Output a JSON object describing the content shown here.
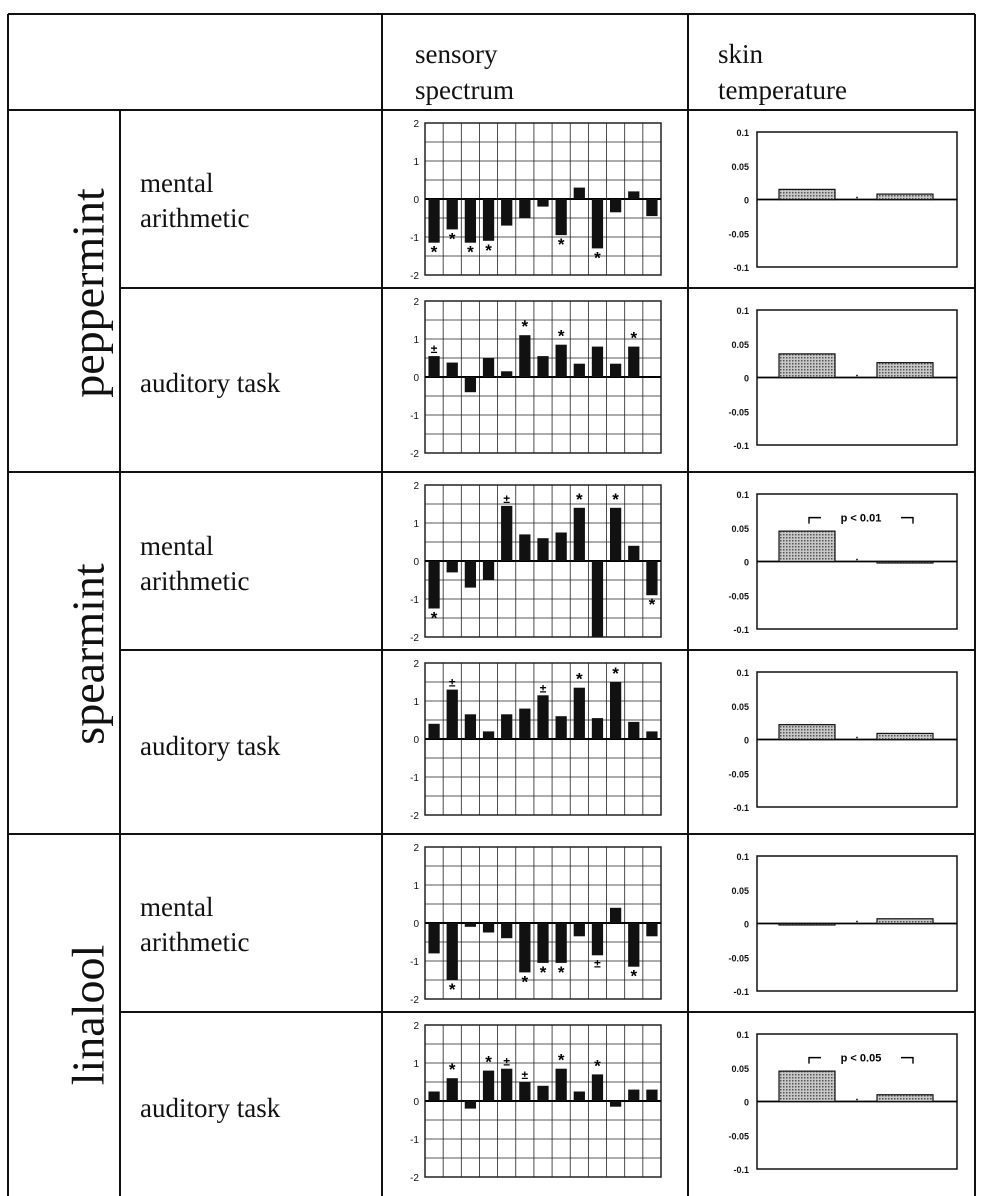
{
  "headers": {
    "sensory": "sensory\nspectrum",
    "skin": "skin\ntemperature"
  },
  "groups": [
    {
      "name": "peppermint",
      "rows": [
        {
          "task": "mental\narithmetic",
          "spectrum": [
            -1.15,
            -0.8,
            -1.15,
            -1.1,
            -0.7,
            -0.5,
            -0.2,
            -0.95,
            0.3,
            -1.3,
            -0.35,
            0.2,
            -0.45
          ],
          "marks": [
            "*",
            "*",
            "*",
            "*",
            "",
            "",
            "",
            "*",
            "",
            "*",
            "",
            "",
            ""
          ],
          "skin": {
            "bars": [
              0.015,
              0.008
            ],
            "annotation": ""
          }
        },
        {
          "task": "auditory task",
          "spectrum": [
            0.55,
            0.38,
            -0.4,
            0.5,
            0.15,
            1.1,
            0.55,
            0.85,
            0.35,
            0.8,
            0.35,
            0.8
          ],
          "marks": [
            "±",
            "",
            "",
            "",
            "",
            "*",
            "",
            "*",
            "",
            "",
            "",
            "*"
          ],
          "skin": {
            "bars": [
              0.035,
              0.022
            ],
            "annotation": ""
          }
        }
      ]
    },
    {
      "name": "spearmint",
      "rows": [
        {
          "task": "mental\narithmetic",
          "spectrum": [
            -1.25,
            -0.3,
            -0.7,
            -0.5,
            1.45,
            0.7,
            0.6,
            0.75,
            1.4,
            -2.0,
            1.4,
            0.4,
            -0.9
          ],
          "marks": [
            "*",
            "",
            "",
            "",
            "±",
            "",
            "",
            "",
            "*",
            "",
            "*",
            "",
            "*"
          ],
          "skin": {
            "bars": [
              0.045,
              0.0
            ],
            "annotation": "p < 0.01"
          }
        },
        {
          "task": "auditory task",
          "spectrum": [
            0.4,
            1.3,
            0.65,
            0.2,
            0.65,
            0.8,
            1.15,
            0.6,
            1.35,
            0.55,
            1.5,
            0.45,
            0.2
          ],
          "marks": [
            "",
            "±",
            "",
            "",
            "",
            "",
            "±",
            "",
            "*",
            "",
            "*",
            "",
            ""
          ],
          "skin": {
            "bars": [
              0.022,
              0.009
            ],
            "annotation": ""
          }
        }
      ]
    },
    {
      "name": "linalool",
      "rows": [
        {
          "task": "mental\narithmetic",
          "spectrum": [
            -0.8,
            -1.5,
            -0.1,
            -0.25,
            -0.4,
            -1.3,
            -1.05,
            -1.05,
            -0.35,
            -0.85,
            0.4,
            -1.15,
            -0.35
          ],
          "marks": [
            "",
            "*",
            "",
            "",
            "",
            "*",
            "*",
            "*",
            "",
            "±",
            "",
            "*",
            ""
          ],
          "skin": {
            "bars": [
              -0.002,
              0.007
            ],
            "annotation": ""
          }
        },
        {
          "task": "auditory task",
          "spectrum": [
            0.25,
            0.6,
            -0.2,
            0.8,
            0.85,
            0.5,
            0.4,
            0.85,
            0.25,
            0.7,
            -0.15,
            0.3,
            0.3
          ],
          "marks": [
            "",
            "*",
            "",
            "*",
            "±",
            "±",
            "",
            "*",
            "",
            "*",
            "",
            "",
            ""
          ],
          "skin": {
            "bars": [
              0.045,
              0.01
            ],
            "annotation": "p < 0.05"
          }
        }
      ]
    }
  ],
  "axes": {
    "spectrum": {
      "ylim": [
        -2,
        2
      ],
      "ticks": [
        "2",
        "1",
        "0",
        "-1",
        "-2"
      ]
    },
    "skin": {
      "ylim": [
        -0.1,
        0.1
      ],
      "ticks": [
        "0.1",
        "0.05",
        "0",
        "-0.05",
        "-0.1"
      ]
    }
  },
  "colors": {
    "bar": "#111111",
    "skin_bar": "#8a8a8a",
    "grid": "#222222"
  },
  "chart_data": [
    {
      "type": "bar",
      "title": "sensory spectrum",
      "ylim": [
        -2,
        2
      ],
      "grid": true,
      "series": [
        {
          "name": "peppermint / mental arithmetic",
          "values": [
            -1.15,
            -0.8,
            -1.15,
            -1.1,
            -0.7,
            -0.5,
            -0.2,
            -0.95,
            0.3,
            -1.3,
            -0.35,
            0.2,
            -0.45
          ]
        },
        {
          "name": "peppermint / auditory task",
          "values": [
            0.55,
            0.38,
            -0.4,
            0.5,
            0.15,
            1.1,
            0.55,
            0.85,
            0.35,
            0.8,
            0.35,
            0.8
          ]
        },
        {
          "name": "spearmint / mental arithmetic",
          "values": [
            -1.25,
            -0.3,
            -0.7,
            -0.5,
            1.45,
            0.7,
            0.6,
            0.75,
            1.4,
            -2.0,
            1.4,
            0.4,
            -0.9
          ]
        },
        {
          "name": "spearmint / auditory task",
          "values": [
            0.4,
            1.3,
            0.65,
            0.2,
            0.65,
            0.8,
            1.15,
            0.6,
            1.35,
            0.55,
            1.5,
            0.45,
            0.2
          ]
        },
        {
          "name": "linalool / mental arithmetic",
          "values": [
            -0.8,
            -1.5,
            -0.1,
            -0.25,
            -0.4,
            -1.3,
            -1.05,
            -1.05,
            -0.35,
            -0.85,
            0.4,
            -1.15,
            -0.35
          ]
        },
        {
          "name": "linalool / auditory task",
          "values": [
            0.25,
            0.6,
            -0.2,
            0.8,
            0.85,
            0.5,
            0.4,
            0.85,
            0.25,
            0.7,
            -0.15,
            0.3,
            0.3
          ]
        }
      ]
    },
    {
      "type": "bar",
      "title": "skin temperature",
      "ylim": [
        -0.1,
        0.1
      ],
      "grid": false,
      "series": [
        {
          "name": "peppermint / mental arithmetic",
          "values": [
            0.015,
            0.008
          ]
        },
        {
          "name": "peppermint / auditory task",
          "values": [
            0.035,
            0.022
          ]
        },
        {
          "name": "spearmint / mental arithmetic",
          "values": [
            0.045,
            0.0
          ]
        },
        {
          "name": "spearmint / auditory task",
          "values": [
            0.022,
            0.009
          ]
        },
        {
          "name": "linalool / mental arithmetic",
          "values": [
            -0.002,
            0.007
          ]
        },
        {
          "name": "linalool / auditory task",
          "values": [
            0.045,
            0.01
          ]
        }
      ]
    }
  ]
}
